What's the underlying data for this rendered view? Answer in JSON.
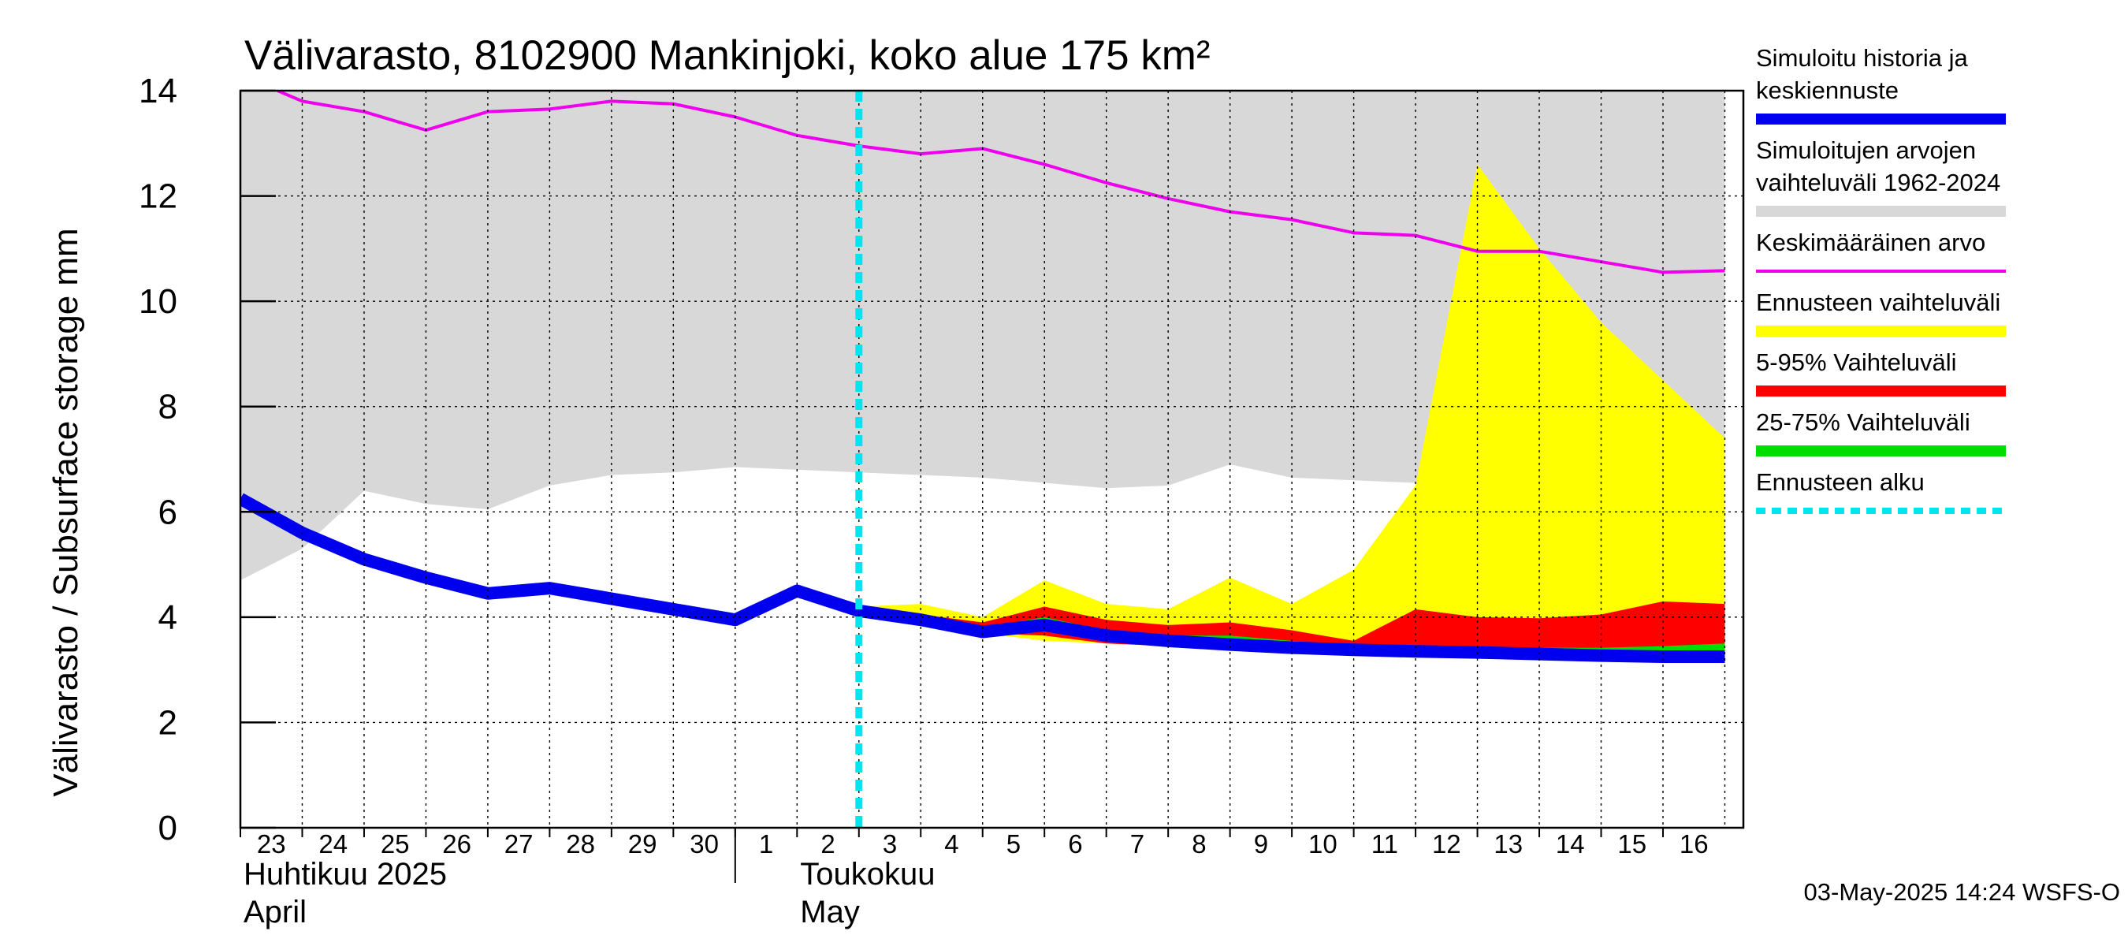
{
  "chart_data": {
    "type": "area",
    "title": "Välivarasto, 8102900 Mankinjoki, koko alue 175 km²",
    "ylabel": "Välivarasto / Subsurface storage  mm",
    "ylim": [
      0,
      14
    ],
    "yticks": [
      0,
      2,
      4,
      6,
      8,
      10,
      12,
      14
    ],
    "grid": true,
    "x_day_labels": [
      "23",
      "24",
      "25",
      "26",
      "27",
      "28",
      "29",
      "30",
      "1",
      "2",
      "3",
      "4",
      "5",
      "6",
      "7",
      "8",
      "9",
      "10",
      "11",
      "12",
      "13",
      "14",
      "15",
      "16"
    ],
    "months": [
      {
        "name_fi": "Huhtikuu  2025",
        "name_en": "April"
      },
      {
        "name_fi": "Toukokuu",
        "name_en": "May"
      }
    ],
    "forecast_start_day": 10,
    "series": [
      {
        "name": "Simuloitujen arvojen vaihteluväli 1962-2024",
        "kind": "band",
        "color": "#d8d8d8",
        "x": [
          0,
          1,
          2,
          3,
          4,
          5,
          6,
          7,
          8,
          9,
          10,
          11,
          12,
          13,
          14,
          15,
          16,
          17,
          18,
          19,
          20,
          21,
          22,
          23,
          24
        ],
        "upper": [
          14,
          14,
          14,
          14,
          14,
          14,
          14,
          14,
          14,
          14,
          14,
          14,
          14,
          14,
          14,
          14,
          14,
          14,
          14,
          14,
          14,
          14,
          14,
          14,
          14
        ],
        "lower": [
          4.7,
          5.3,
          6.4,
          6.15,
          6.05,
          6.5,
          6.7,
          6.75,
          6.85,
          6.8,
          6.75,
          6.7,
          6.65,
          6.55,
          6.45,
          6.5,
          6.9,
          6.65,
          6.6,
          6.55,
          6.6,
          6.45,
          6.3,
          6.2,
          6.1
        ]
      },
      {
        "name": "Ennusteen vaihteluväli",
        "kind": "band",
        "color": "#ffff00",
        "x": [
          10,
          11,
          12,
          13,
          14,
          15,
          16,
          17,
          18,
          19,
          20,
          21,
          22,
          23,
          24
        ],
        "upper": [
          4.2,
          4.25,
          4.0,
          4.7,
          4.25,
          4.15,
          4.75,
          4.25,
          4.9,
          6.5,
          12.6,
          11.0,
          9.6,
          8.5,
          7.4
        ],
        "lower": [
          4.1,
          3.95,
          3.7,
          3.55,
          3.5,
          3.45,
          3.4,
          3.38,
          3.35,
          3.33,
          3.3,
          3.28,
          3.25,
          3.23,
          3.22
        ]
      },
      {
        "name": "5-95% Vaihteluväli",
        "kind": "band",
        "color": "#ff0000",
        "x": [
          10,
          11,
          12,
          13,
          14,
          15,
          16,
          17,
          18,
          19,
          20,
          21,
          22,
          23,
          24
        ],
        "upper": [
          4.15,
          4.05,
          3.9,
          4.2,
          3.95,
          3.85,
          3.9,
          3.75,
          3.55,
          4.15,
          4.0,
          3.98,
          4.05,
          4.3,
          4.25
        ],
        "lower": [
          4.1,
          3.95,
          3.7,
          3.65,
          3.5,
          3.45,
          3.4,
          3.38,
          3.35,
          3.33,
          3.3,
          3.28,
          3.25,
          3.23,
          3.22
        ]
      },
      {
        "name": "25-75% Vaihteluväli",
        "kind": "band",
        "color": "#00dd00",
        "x": [
          10,
          11,
          12,
          13,
          14,
          15,
          16,
          17,
          18,
          19,
          20,
          21,
          22,
          23,
          24
        ],
        "upper": [
          4.12,
          3.98,
          3.8,
          4.0,
          3.75,
          3.65,
          3.65,
          3.55,
          3.45,
          3.42,
          3.42,
          3.42,
          3.42,
          3.45,
          3.5
        ],
        "lower": [
          4.1,
          3.95,
          3.72,
          3.85,
          3.65,
          3.55,
          3.5,
          3.42,
          3.38,
          3.35,
          3.33,
          3.3,
          3.28,
          3.25,
          3.25
        ]
      },
      {
        "name": "Keskimääräinen arvo",
        "kind": "line",
        "color": "#ee00ee",
        "x": [
          0.6,
          1,
          2,
          3,
          4,
          5,
          6,
          7,
          8,
          9,
          10,
          11,
          12,
          13,
          14,
          15,
          16,
          17,
          18,
          19,
          20,
          21,
          22,
          23,
          24
        ],
        "values": [
          14,
          13.8,
          13.6,
          13.25,
          13.6,
          13.65,
          13.8,
          13.75,
          13.5,
          13.15,
          12.95,
          12.8,
          12.9,
          12.6,
          12.25,
          11.95,
          11.7,
          11.55,
          11.3,
          11.25,
          10.95,
          10.95,
          10.75,
          10.55,
          10.58
        ]
      },
      {
        "name": "Simuloitu historia ja keskiennuste",
        "kind": "line",
        "color": "#0000ee",
        "x": [
          0,
          1,
          2,
          3,
          4,
          5,
          6,
          7,
          8,
          9,
          10,
          11,
          12,
          13,
          14,
          15,
          16,
          17,
          18,
          19,
          20,
          21,
          22,
          23,
          24
        ],
        "values": [
          6.25,
          5.6,
          5.1,
          4.75,
          4.45,
          4.55,
          4.35,
          4.15,
          3.95,
          4.5,
          4.12,
          3.95,
          3.72,
          3.85,
          3.65,
          3.55,
          3.48,
          3.42,
          3.38,
          3.35,
          3.33,
          3.3,
          3.27,
          3.25,
          3.25
        ]
      }
    ],
    "legend": [
      {
        "label": [
          "Simuloitu historia ja",
          "keskiennuste"
        ],
        "color": "#0000ee",
        "style": "thick"
      },
      {
        "label": [
          "Simuloitujen arvojen",
          "vaihteluväli 1962-2024"
        ],
        "color": "#d8d8d8",
        "style": "thick"
      },
      {
        "label": [
          "Keskimääräinen arvo"
        ],
        "color": "#ee00ee",
        "style": "thin"
      },
      {
        "label": [
          "Ennusteen vaihteluväli"
        ],
        "color": "#ffff00",
        "style": "thick"
      },
      {
        "label": [
          "5-95% Vaihteluväli"
        ],
        "color": "#ff0000",
        "style": "thick"
      },
      {
        "label": [
          "25-75% Vaihteluväli"
        ],
        "color": "#00dd00",
        "style": "thick"
      },
      {
        "label": [
          "Ennusteen alku"
        ],
        "color": "#00e5ee",
        "style": "dashed"
      }
    ],
    "timestamp": "03-May-2025 14:24 WSFS-O"
  }
}
